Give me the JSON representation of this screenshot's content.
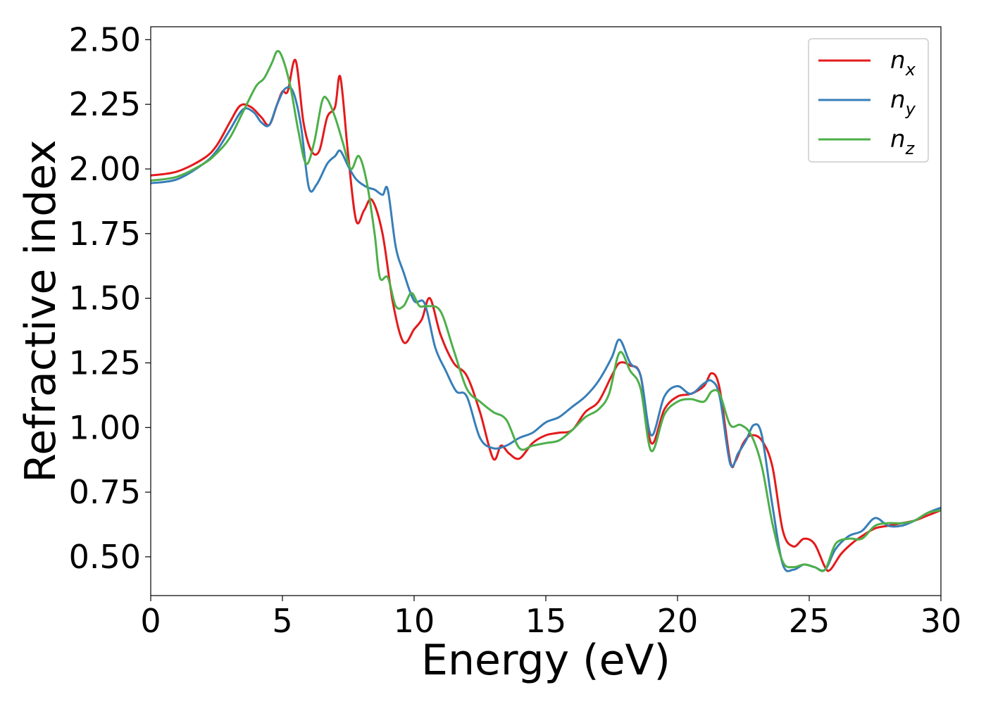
{
  "chart_data": {
    "type": "line",
    "xlabel": "Energy (eV)",
    "ylabel": "Refractive index",
    "xlim": [
      0,
      30
    ],
    "ylim": [
      0.35,
      2.55
    ],
    "xticks": [
      0,
      5,
      10,
      15,
      20,
      25,
      30
    ],
    "xtick_labels": [
      "0",
      "5",
      "10",
      "15",
      "20",
      "25",
      "30"
    ],
    "yticks": [
      0.5,
      0.75,
      1.0,
      1.25,
      1.5,
      1.75,
      2.0,
      2.25,
      2.5
    ],
    "ytick_labels": [
      "0.50",
      "0.75",
      "1.00",
      "1.25",
      "1.50",
      "1.75",
      "2.00",
      "2.25",
      "2.50"
    ],
    "grid": false,
    "legend_position": "top-right",
    "series": [
      {
        "name": "n_x",
        "label_base": "n",
        "label_sub": "x",
        "color": "#e41a1c",
        "x": [
          0,
          1,
          2,
          2.5,
          3,
          3.4,
          3.8,
          4.2,
          4.5,
          4.8,
          5.0,
          5.2,
          5.5,
          5.8,
          6.1,
          6.4,
          6.7,
          7.0,
          7.2,
          7.5,
          7.8,
          8.1,
          8.4,
          8.8,
          9.2,
          9.6,
          10.0,
          10.3,
          10.6,
          11.0,
          11.5,
          12.0,
          12.5,
          13.0,
          13.3,
          13.6,
          14.0,
          14.5,
          15.0,
          15.5,
          16.0,
          16.5,
          17.0,
          17.5,
          17.8,
          18.2,
          18.6,
          19.0,
          19.5,
          20.0,
          20.5,
          21.0,
          21.3,
          21.6,
          22.0,
          22.2,
          22.5,
          22.8,
          23.2,
          23.6,
          24.0,
          24.4,
          24.8,
          25.2,
          25.6,
          25.8,
          26.2,
          26.6,
          27.0,
          27.5,
          28.0,
          28.5,
          29.0,
          29.5,
          30.0
        ],
        "y": [
          1.975,
          1.99,
          2.04,
          2.09,
          2.18,
          2.245,
          2.24,
          2.2,
          2.17,
          2.25,
          2.3,
          2.3,
          2.42,
          2.18,
          2.07,
          2.07,
          2.2,
          2.24,
          2.355,
          2.05,
          1.8,
          1.84,
          1.88,
          1.75,
          1.48,
          1.33,
          1.38,
          1.42,
          1.5,
          1.36,
          1.25,
          1.2,
          1.06,
          0.88,
          0.93,
          0.9,
          0.88,
          0.94,
          0.97,
          0.98,
          0.99,
          1.06,
          1.1,
          1.2,
          1.25,
          1.24,
          1.2,
          0.94,
          1.07,
          1.12,
          1.13,
          1.16,
          1.21,
          1.15,
          0.87,
          0.87,
          0.94,
          0.97,
          0.95,
          0.85,
          0.6,
          0.54,
          0.57,
          0.55,
          0.46,
          0.45,
          0.51,
          0.55,
          0.58,
          0.61,
          0.62,
          0.63,
          0.64,
          0.66,
          0.68
        ]
      },
      {
        "name": "n_y",
        "label_base": "n",
        "label_sub": "y",
        "color": "#377eb8",
        "x": [
          0,
          1,
          2,
          2.5,
          3,
          3.5,
          3.9,
          4.2,
          4.5,
          4.8,
          5.1,
          5.4,
          5.7,
          6.0,
          6.3,
          6.7,
          7.0,
          7.2,
          7.5,
          7.8,
          8.2,
          8.5,
          8.8,
          9.0,
          9.3,
          9.6,
          10.0,
          10.4,
          10.8,
          11.2,
          11.6,
          12.0,
          12.5,
          13.0,
          13.5,
          14.0,
          14.5,
          15.0,
          15.5,
          16.0,
          16.5,
          17.0,
          17.5,
          17.8,
          18.2,
          18.6,
          19.0,
          19.5,
          20.0,
          20.5,
          21.0,
          21.3,
          21.6,
          22.0,
          22.3,
          22.6,
          22.9,
          23.2,
          23.6,
          24.0,
          24.4,
          24.8,
          25.2,
          25.6,
          26.0,
          26.5,
          27.0,
          27.5,
          28.0,
          28.5,
          29.0,
          29.5,
          30.0
        ],
        "y": [
          1.945,
          1.96,
          2.02,
          2.07,
          2.15,
          2.23,
          2.22,
          2.18,
          2.17,
          2.25,
          2.31,
          2.3,
          2.17,
          1.93,
          1.94,
          2.02,
          2.05,
          2.07,
          2.01,
          1.96,
          1.93,
          1.92,
          1.9,
          1.92,
          1.7,
          1.6,
          1.49,
          1.48,
          1.31,
          1.22,
          1.14,
          1.12,
          0.96,
          0.92,
          0.93,
          0.96,
          0.98,
          1.02,
          1.04,
          1.08,
          1.12,
          1.18,
          1.27,
          1.34,
          1.25,
          1.2,
          0.97,
          1.12,
          1.16,
          1.13,
          1.17,
          1.18,
          1.12,
          0.86,
          0.9,
          0.95,
          1.01,
          0.97,
          0.7,
          0.47,
          0.45,
          0.47,
          0.46,
          0.45,
          0.53,
          0.58,
          0.6,
          0.65,
          0.62,
          0.62,
          0.64,
          0.67,
          0.69
        ]
      },
      {
        "name": "n_z",
        "label_base": "n",
        "label_sub": "z",
        "color": "#4daf4a",
        "x": [
          0,
          1,
          2,
          2.5,
          3,
          3.5,
          4.0,
          4.3,
          4.6,
          4.8,
          5.0,
          5.3,
          5.6,
          5.9,
          6.2,
          6.5,
          6.7,
          7.0,
          7.3,
          7.6,
          7.9,
          8.2,
          8.5,
          8.7,
          9.0,
          9.3,
          9.6,
          9.9,
          10.2,
          10.5,
          11.0,
          11.5,
          12.0,
          12.5,
          13.0,
          13.5,
          14.0,
          14.5,
          15.0,
          15.5,
          16.0,
          16.5,
          17.0,
          17.4,
          17.8,
          18.2,
          18.6,
          19.0,
          19.5,
          20.0,
          20.5,
          21.0,
          21.3,
          21.6,
          22.0,
          22.4,
          22.8,
          23.2,
          23.6,
          24.0,
          24.4,
          24.8,
          25.2,
          25.6,
          26.0,
          26.5,
          27.0,
          27.5,
          28.0,
          28.5,
          29.0,
          29.5,
          30.0
        ],
        "y": [
          1.955,
          1.97,
          2.02,
          2.06,
          2.12,
          2.22,
          2.32,
          2.35,
          2.41,
          2.455,
          2.43,
          2.32,
          2.15,
          2.02,
          2.1,
          2.26,
          2.27,
          2.2,
          2.1,
          2.0,
          2.05,
          1.95,
          1.75,
          1.58,
          1.58,
          1.47,
          1.47,
          1.52,
          1.47,
          1.47,
          1.45,
          1.3,
          1.15,
          1.1,
          1.06,
          1.03,
          0.92,
          0.93,
          0.94,
          0.95,
          0.99,
          1.04,
          1.07,
          1.13,
          1.29,
          1.22,
          1.15,
          0.91,
          1.05,
          1.1,
          1.11,
          1.1,
          1.14,
          1.13,
          1.01,
          1.01,
          0.97,
          0.85,
          0.63,
          0.48,
          0.46,
          0.47,
          0.46,
          0.45,
          0.55,
          0.57,
          0.57,
          0.62,
          0.63,
          0.63,
          0.64,
          0.67,
          0.68
        ]
      }
    ]
  }
}
